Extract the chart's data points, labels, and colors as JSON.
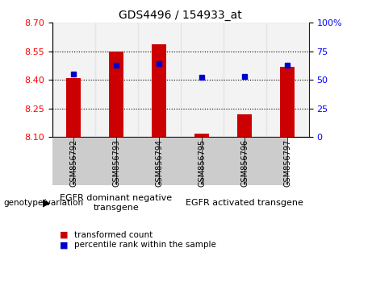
{
  "title": "GDS4496 / 154933_at",
  "categories": [
    "GSM856792",
    "GSM856793",
    "GSM856794",
    "GSM856795",
    "GSM856796",
    "GSM856797"
  ],
  "bar_values": [
    8.41,
    8.55,
    8.585,
    8.115,
    8.22,
    8.47
  ],
  "bar_base": 8.1,
  "percentile_values": [
    55,
    63,
    64,
    52,
    53,
    63
  ],
  "ylim_left": [
    8.1,
    8.7
  ],
  "ylim_right": [
    0,
    100
  ],
  "yticks_left": [
    8.1,
    8.25,
    8.4,
    8.55,
    8.7
  ],
  "yticks_right": [
    0,
    25,
    50,
    75,
    100
  ],
  "bar_color": "#cc0000",
  "dot_color": "#0000cc",
  "legend_bar_label": "transformed count",
  "legend_dot_label": "percentile rank within the sample",
  "group1_label": "EGFR dominant negative\ntransgene",
  "group2_label": "EGFR activated transgene",
  "group1_count": 3,
  "group2_count": 3,
  "xlabel_label": "genotype/variation",
  "bar_width": 0.35,
  "group_bg_color": "#90ee90",
  "xtick_bg_color": "#cccccc",
  "figsize": [
    4.61,
    3.54
  ],
  "dpi": 100
}
